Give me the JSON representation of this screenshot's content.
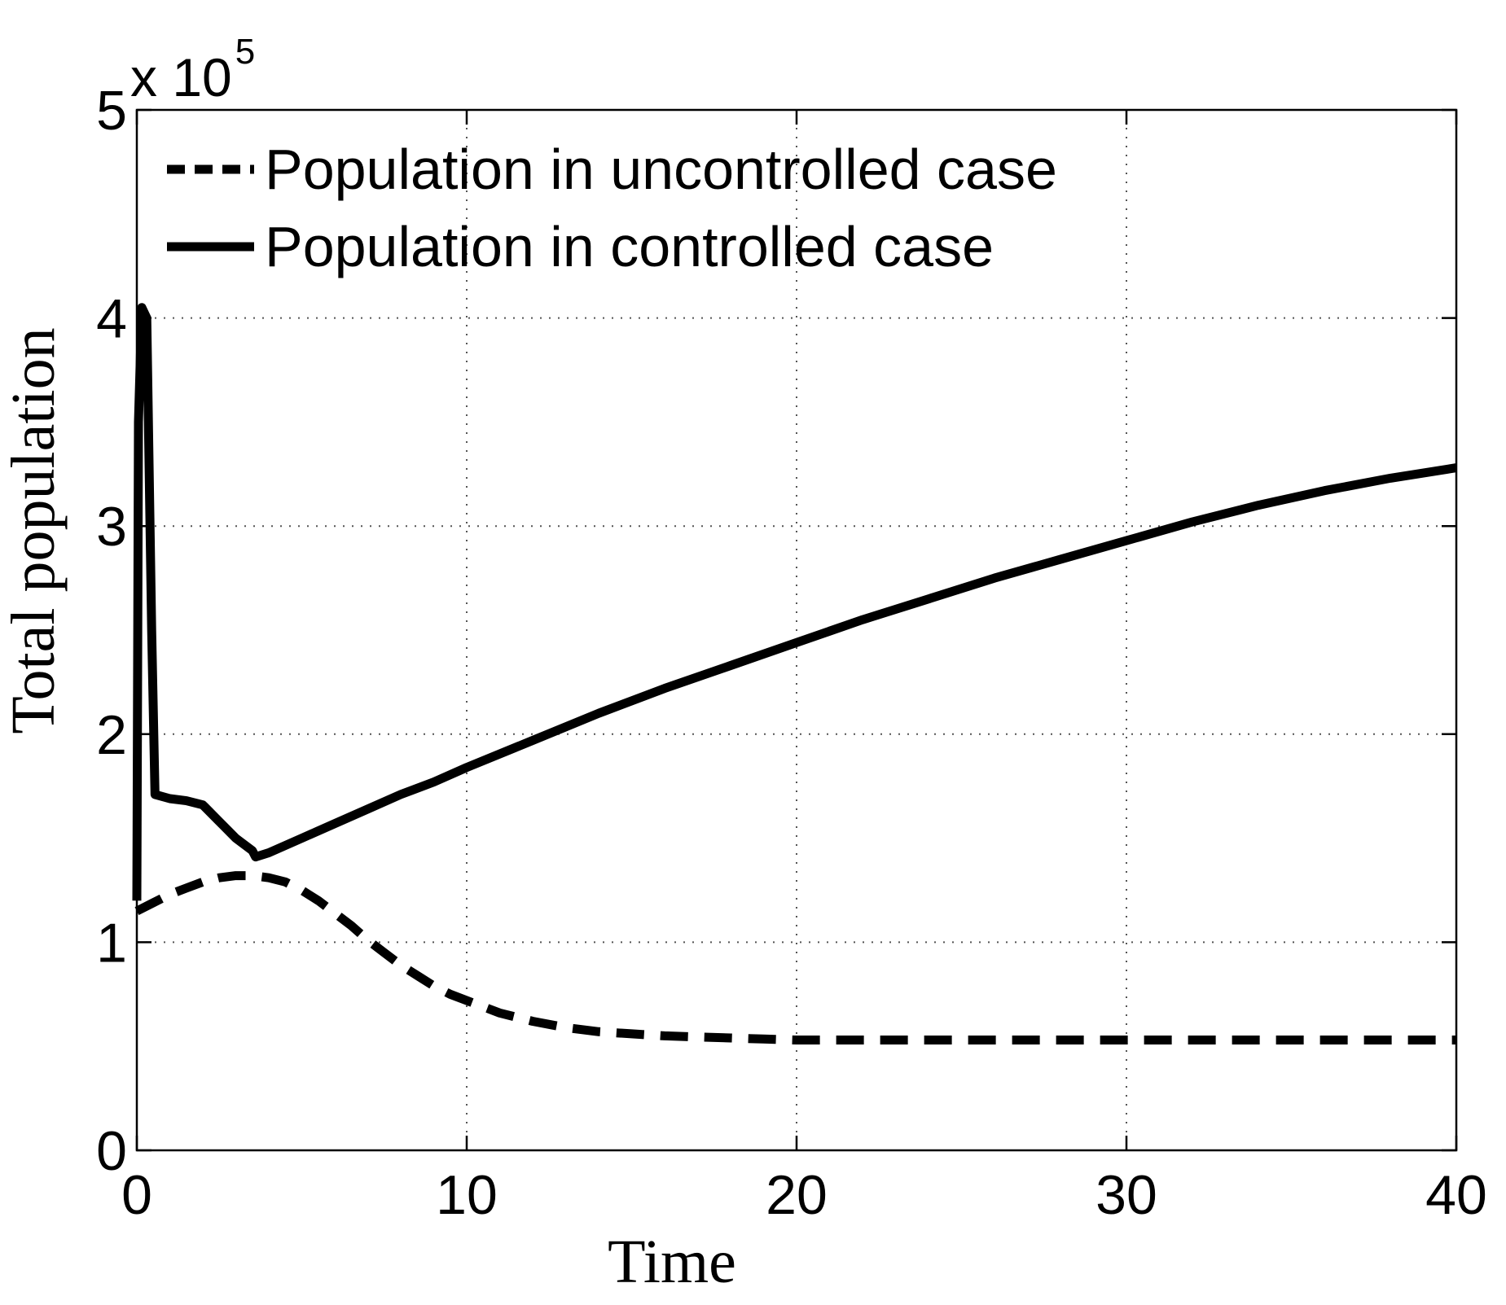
{
  "chart_data": {
    "type": "line",
    "title": "",
    "xlabel": "Time",
    "ylabel": "Total population",
    "xlim": [
      0,
      40
    ],
    "ylim": [
      0,
      5
    ],
    "xticks": [
      0,
      10,
      20,
      30,
      40
    ],
    "yticks": [
      0,
      1,
      2,
      3,
      4,
      5
    ],
    "xtick_labels": [
      "0",
      "10",
      "20",
      "30",
      "40"
    ],
    "ytick_labels": [
      "0",
      "1",
      "2",
      "3",
      "4",
      "5"
    ],
    "y_multiplier": {
      "prefix": "x 10",
      "exponent": "5"
    },
    "grid": true,
    "legend_position": "top-left",
    "series": [
      {
        "name": "Population in uncontrolled case",
        "style": "dashed",
        "color": "#000000",
        "x": [
          0,
          0.5,
          1,
          1.5,
          2,
          2.5,
          3,
          3.5,
          4,
          4.5,
          5,
          5.5,
          6,
          6.5,
          7,
          7.5,
          8,
          8.5,
          9,
          9.5,
          10,
          11,
          12,
          13,
          14,
          15,
          16,
          17,
          18,
          19,
          20,
          22,
          24,
          26,
          28,
          30,
          32,
          34,
          36,
          38,
          40
        ],
        "y": [
          1.15,
          1.19,
          1.23,
          1.26,
          1.29,
          1.31,
          1.32,
          1.32,
          1.31,
          1.29,
          1.25,
          1.2,
          1.14,
          1.08,
          1.01,
          0.95,
          0.89,
          0.84,
          0.79,
          0.75,
          0.72,
          0.66,
          0.62,
          0.59,
          0.57,
          0.56,
          0.55,
          0.545,
          0.54,
          0.535,
          0.53,
          0.53,
          0.53,
          0.53,
          0.53,
          0.53,
          0.53,
          0.53,
          0.53,
          0.53,
          0.53
        ]
      },
      {
        "name": "Population in controlled case",
        "style": "solid",
        "color": "#000000",
        "x": [
          0,
          0.05,
          0.15,
          0.3,
          0.45,
          0.55,
          1,
          1.5,
          2,
          2.5,
          3,
          3.5,
          3.6,
          4,
          5,
          6,
          7,
          8,
          9,
          10,
          12,
          14,
          16,
          18,
          20,
          22,
          24,
          26,
          28,
          30,
          32,
          34,
          36,
          38,
          40
        ],
        "y": [
          1.2,
          3.5,
          4.05,
          4.0,
          2.5,
          1.71,
          1.69,
          1.68,
          1.66,
          1.58,
          1.5,
          1.44,
          1.41,
          1.43,
          1.5,
          1.57,
          1.64,
          1.71,
          1.77,
          1.84,
          1.97,
          2.1,
          2.22,
          2.33,
          2.44,
          2.55,
          2.65,
          2.75,
          2.84,
          2.93,
          3.02,
          3.1,
          3.17,
          3.23,
          3.28
        ]
      }
    ]
  }
}
